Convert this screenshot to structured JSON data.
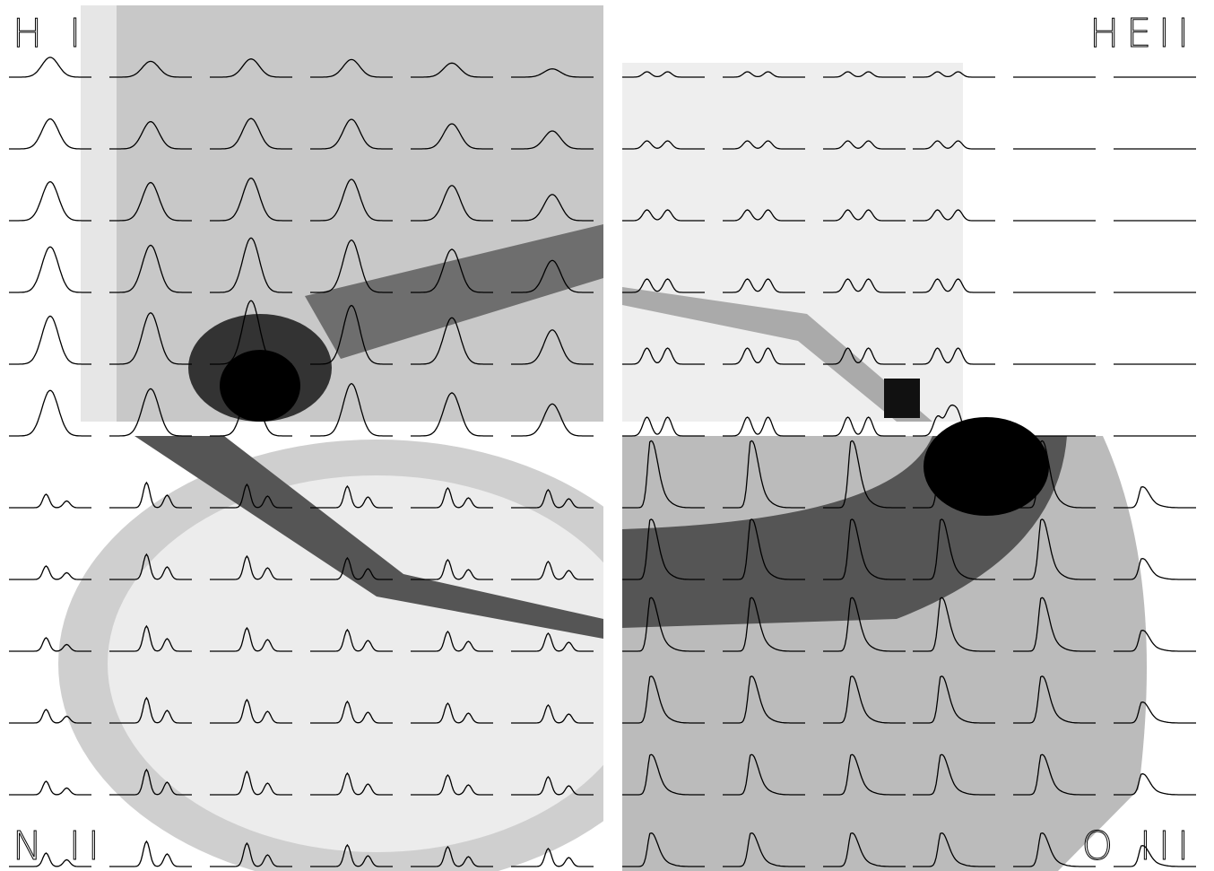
{
  "panels": [
    {
      "label": "H I"
    },
    {
      "label": "HEII"
    },
    {
      "label": "N II"
    },
    {
      "label": "O III"
    }
  ]
}
